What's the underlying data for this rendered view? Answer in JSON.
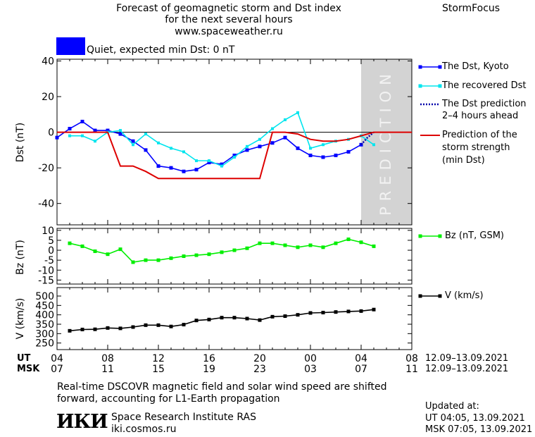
{
  "header": {
    "title_lines": [
      "Forecast of geomagnetic storm and Dst index",
      "for the next several hours",
      "www.spaceweather.ru"
    ],
    "brand": "StormFocus"
  },
  "status": {
    "label": "Quiet, expected min Dst: 0 nT",
    "color": "#0000ff"
  },
  "legend": {
    "dst": "The Dst, Kyoto",
    "recovered": "The recovered Dst",
    "prediction_l1": "The Dst prediction",
    "prediction_l2": "2–4 hours ahead",
    "strength_l1": "Prediction of the",
    "strength_l2": "storm strength",
    "strength_l3": "(min Dst)",
    "bz": "Bz (nT, GSM)",
    "v": "V (km/s)"
  },
  "time_axis": {
    "ut_label": "UT",
    "msk_label": "MSK",
    "ut_ticks": [
      "04",
      "08",
      "12",
      "16",
      "20",
      "00",
      "04",
      "08"
    ],
    "msk_ticks": [
      "07",
      "11",
      "15",
      "19",
      "23",
      "03",
      "07",
      "11"
    ],
    "date_range": "12.09–13.09.2021"
  },
  "footer": {
    "note_l1": "Real-time DSCOVR magnetic field and solar wind speed are shifted",
    "note_l2": "forward, accounting for L1-Earth propagation",
    "logo_text": "ИКИ",
    "institute": "Space Research Institute RAS",
    "url": "iki.cosmos.ru",
    "updated_label": "Updated at:",
    "updated_ut": "UT   04:05, 13.09.2021",
    "updated_msk": "MSK 07:05, 13.09.2021"
  },
  "chart_data": [
    {
      "type": "line",
      "ylabel": "Dst (nT)",
      "ylim": [
        -52,
        41
      ],
      "yticks": [
        40,
        20,
        0,
        -20,
        -40
      ],
      "x_unit": "hours from 04 UT 12.09.2021",
      "xlim": [
        0,
        28
      ],
      "prediction_zone": {
        "x": [
          24,
          28
        ],
        "label": "PREDICTION",
        "color": "#d3d3d3"
      },
      "series": [
        {
          "name": "The Dst, Kyoto",
          "color": "#0000ff",
          "x": [
            0,
            1,
            2,
            3,
            4,
            5,
            6,
            7,
            8,
            9,
            10,
            11,
            12,
            13,
            14,
            15,
            16,
            17,
            18,
            19,
            20,
            21,
            22,
            23,
            24
          ],
          "y": [
            -3,
            2,
            6,
            1,
            1,
            -1,
            -5,
            -10,
            -19,
            -20,
            -22,
            -21,
            -17,
            -18,
            -13,
            -10,
            -8,
            -6,
            -3,
            -9,
            -13,
            -14,
            -13,
            -11,
            -7
          ]
        },
        {
          "name": "The recovered Dst",
          "color": "#00e5ee",
          "x": [
            1,
            2,
            3,
            4,
            5,
            6,
            7,
            8,
            9,
            10,
            11,
            12,
            13,
            14,
            15,
            16,
            17,
            18,
            19,
            20,
            21,
            22,
            23,
            24,
            25
          ],
          "y": [
            -2,
            -2,
            -5,
            0,
            1,
            -7,
            -1,
            -6,
            -9,
            -11,
            -16,
            -16,
            -19,
            -14,
            -8,
            -4,
            2,
            7,
            11,
            -9,
            -7,
            -5,
            -4,
            -2,
            -7
          ]
        },
        {
          "name": "The Dst prediction 2–4 hours ahead",
          "color": "#0000aa",
          "x": [
            24,
            24.5,
            25
          ],
          "y": [
            -7,
            -3,
            0
          ]
        },
        {
          "name": "Prediction of the storm strength (min Dst)",
          "color": "#dd0000",
          "x": [
            0,
            4,
            5,
            6,
            7,
            8,
            13,
            14,
            15,
            16,
            17,
            18,
            19,
            20,
            21,
            22,
            23,
            24,
            25,
            28
          ],
          "y": [
            0,
            0,
            -19,
            -19,
            -22,
            -26,
            -26,
            -26,
            -26,
            -26,
            0,
            0,
            -1,
            -4,
            -5,
            -5,
            -4,
            -2,
            0,
            0
          ]
        }
      ]
    },
    {
      "type": "line",
      "ylabel": "Bz (nT)",
      "ylim": [
        -17,
        11
      ],
      "yticks": [
        10,
        5,
        0,
        -5,
        -10,
        -15
      ],
      "series": [
        {
          "name": "Bz (nT, GSM)",
          "color": "#00ee00",
          "x": [
            1,
            2,
            3,
            4,
            5,
            6,
            7,
            8,
            9,
            10,
            11,
            12,
            13,
            14,
            15,
            16,
            17,
            18,
            19,
            20,
            21,
            22,
            23,
            24,
            25
          ],
          "y": [
            3.5,
            2,
            -0.5,
            -2,
            0.5,
            -6,
            -5,
            -5,
            -4,
            -3,
            -2.5,
            -2,
            -1,
            0,
            1,
            3.5,
            3.5,
            2.5,
            1.5,
            2.5,
            1.5,
            3.5,
            5.5,
            4,
            2
          ]
        }
      ]
    },
    {
      "type": "line",
      "ylabel": "V (km/s)",
      "ylim": [
        215,
        545
      ],
      "yticks": [
        500,
        450,
        400,
        350,
        300,
        250
      ],
      "series": [
        {
          "name": "V (km/s)",
          "color": "#000000",
          "x": [
            1,
            2,
            3,
            4,
            5,
            6,
            7,
            8,
            9,
            10,
            11,
            12,
            13,
            14,
            15,
            16,
            17,
            18,
            19,
            20,
            21,
            22,
            23,
            24,
            25
          ],
          "y": [
            315,
            322,
            323,
            330,
            328,
            335,
            345,
            345,
            338,
            348,
            370,
            375,
            385,
            385,
            380,
            372,
            390,
            393,
            400,
            410,
            412,
            415,
            418,
            420,
            428
          ]
        }
      ]
    }
  ]
}
